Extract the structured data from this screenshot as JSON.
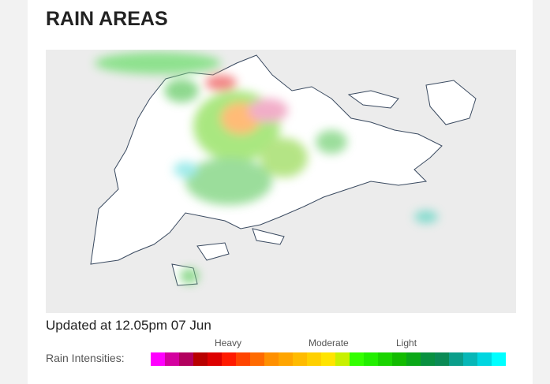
{
  "title": "RAIN AREAS",
  "updated": "Updated at 12.05pm 07 Jun",
  "legend": {
    "label": "Rain Intensities:",
    "scale_labels": [
      "Heavy",
      "Moderate",
      "Light"
    ],
    "colors": [
      "#ff00ff",
      "#d4009f",
      "#b2005e",
      "#b80000",
      "#dd0000",
      "#ff1a00",
      "#ff4400",
      "#ff6a00",
      "#ff9000",
      "#ffa500",
      "#ffbb00",
      "#ffd000",
      "#ffe400",
      "#c8f000",
      "#33ff00",
      "#22ee00",
      "#1ad400",
      "#12bb00",
      "#0ba818",
      "#089040",
      "#0a8a55",
      "#0b9e8a",
      "#07b7b7",
      "#00d6e0",
      "#00ffff"
    ]
  }
}
